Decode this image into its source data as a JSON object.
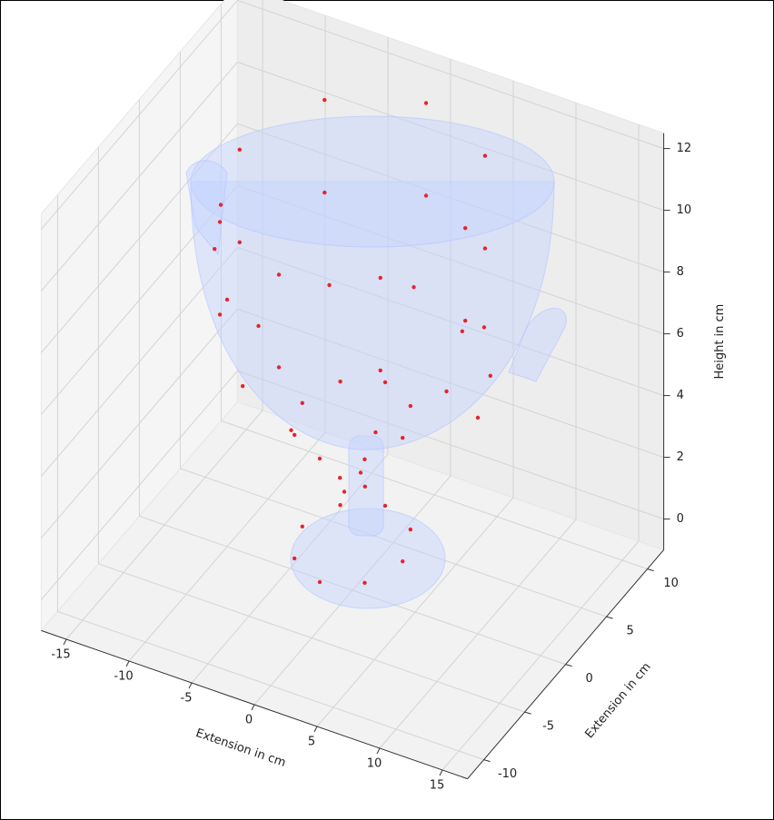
{
  "chart_data": {
    "type": "scatter3d",
    "xlabel": "Extension in cm",
    "ylabel": "Extension in cm",
    "zlabel": "Height in cm",
    "color": "#e3262c",
    "xlim": [
      -17,
      17
    ],
    "ylim": [
      -12,
      12
    ],
    "zlim": [
      -1,
      12.5
    ],
    "xticks": [
      -15,
      -10,
      -5,
      0,
      5,
      10,
      15
    ],
    "yticks": [
      -10,
      -5,
      0,
      5,
      10
    ],
    "zticks": [
      0,
      2,
      4,
      6,
      8,
      10,
      12
    ],
    "grid": true,
    "x": [
      9,
      6.4,
      0,
      -6.4,
      -9,
      -6.4,
      0,
      6.4,
      9,
      6.4,
      0,
      -6.4,
      -9,
      -6.4,
      0,
      6.4,
      7.5,
      5.3,
      0,
      -5.3,
      -7.5,
      -5.3,
      0,
      5.3,
      4,
      2.8,
      0,
      -2.8,
      -4,
      -2.8,
      0,
      2.8,
      1,
      0,
      -1,
      0,
      4,
      2.8,
      0,
      -2.8,
      -4,
      -2.8,
      0,
      2.8,
      10.5,
      11,
      10,
      -10.5,
      -11,
      -10
    ],
    "y": [
      0,
      6.4,
      9,
      6.4,
      0,
      -6.4,
      -9,
      -6.4,
      0,
      6.4,
      9,
      6.4,
      0,
      -6.4,
      -9,
      -6.4,
      0,
      5.3,
      7.5,
      5.3,
      0,
      -5.3,
      -7.5,
      -5.3,
      0,
      2.8,
      4,
      2.8,
      0,
      -2.8,
      -4,
      -2.8,
      0,
      1,
      0,
      -1,
      0,
      2.8,
      4,
      2.8,
      0,
      -2.8,
      -4,
      -2.8,
      0,
      0,
      0,
      0,
      0,
      0
    ],
    "z": [
      12,
      12,
      12,
      12,
      12,
      12,
      12,
      12,
      9,
      9,
      9,
      9,
      9,
      9,
      9,
      9,
      6.5,
      6.5,
      6.5,
      6.5,
      6.5,
      6.5,
      6.5,
      6.5,
      4.5,
      4.5,
      4.5,
      4.5,
      4.5,
      4.5,
      4.5,
      4.5,
      2.5,
      2.5,
      2.5,
      2.5,
      0.5,
      0.5,
      0.5,
      0.5,
      0.5,
      0.5,
      0.5,
      0.5,
      9,
      7.5,
      6,
      10,
      8.5,
      7
    ]
  }
}
